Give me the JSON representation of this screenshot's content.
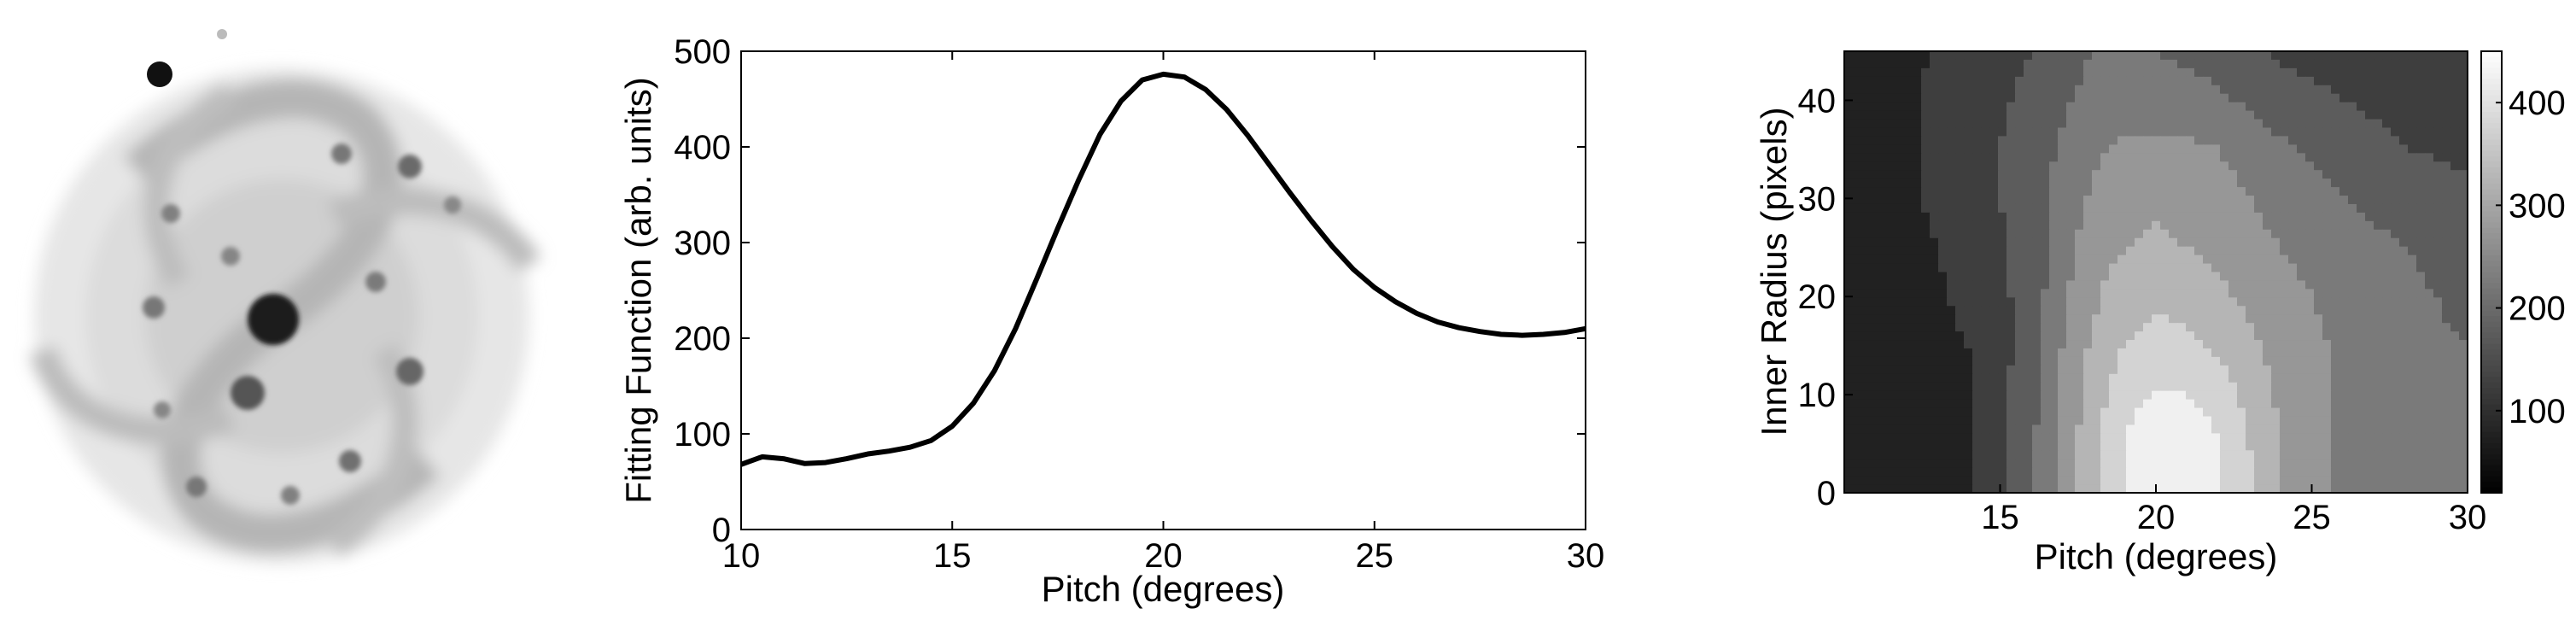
{
  "galaxy_image": {
    "description_icon": "spiral-galaxy-image"
  },
  "chart_data": [
    {
      "type": "line",
      "xlabel": "Pitch (degrees)",
      "ylabel": "Fitting Function (arb. units)",
      "xlim": [
        10,
        30
      ],
      "ylim": [
        0,
        500
      ],
      "xticks": [
        10,
        15,
        20,
        25,
        30
      ],
      "yticks": [
        0,
        100,
        200,
        300,
        400,
        500
      ],
      "grid": false,
      "series": [
        {
          "color": "#000000",
          "x": [
            10,
            10.5,
            11,
            11.5,
            12,
            12.5,
            13,
            13.5,
            14,
            14.5,
            15,
            15.5,
            16,
            16.5,
            17,
            17.5,
            18,
            18.5,
            19,
            19.5,
            20,
            20.5,
            21,
            21.5,
            22,
            22.5,
            23,
            23.5,
            24,
            24.5,
            25,
            25.5,
            26,
            26.5,
            27,
            27.5,
            28,
            28.5,
            29,
            29.5,
            30
          ],
          "y": [
            68,
            76,
            74,
            69,
            70,
            74,
            79,
            82,
            86,
            93,
            108,
            132,
            166,
            210,
            262,
            315,
            366,
            413,
            448,
            470,
            476,
            473,
            460,
            439,
            412,
            382,
            352,
            323,
            296,
            272,
            253,
            238,
            226,
            217,
            211,
            207,
            204,
            203,
            204,
            206,
            210
          ]
        }
      ]
    },
    {
      "type": "heatmap",
      "style": "filled-contour",
      "colormap": "gray",
      "xlabel": "Pitch (degrees)",
      "ylabel": "Inner Radius (pixels)",
      "xlim": [
        10,
        30
      ],
      "ylim": [
        0,
        45
      ],
      "xticks": [
        15,
        20,
        25,
        30
      ],
      "yticks": [
        0,
        10,
        20,
        30,
        40
      ],
      "x": [
        10,
        12,
        14,
        16,
        17,
        18,
        19,
        20,
        21,
        22,
        23,
        24,
        26,
        28,
        30
      ],
      "y": [
        0,
        5,
        10,
        15,
        20,
        25,
        30,
        35,
        40,
        45
      ],
      "z": [
        [
          80,
          70,
          100,
          190,
          270,
          330,
          400,
          440,
          440,
          400,
          360,
          300,
          240,
          210,
          200
        ],
        [
          80,
          80,
          100,
          190,
          270,
          330,
          400,
          450,
          440,
          400,
          350,
          300,
          240,
          210,
          200
        ],
        [
          60,
          70,
          100,
          180,
          260,
          330,
          380,
          400,
          400,
          380,
          330,
          290,
          240,
          210,
          200
        ],
        [
          50,
          80,
          100,
          170,
          250,
          310,
          350,
          370,
          360,
          340,
          310,
          280,
          240,
          210,
          200
        ],
        [
          50,
          80,
          110,
          170,
          240,
          290,
          330,
          340,
          330,
          310,
          290,
          270,
          230,
          210,
          190
        ],
        [
          60,
          80,
          120,
          170,
          230,
          280,
          300,
          310,
          300,
          290,
          270,
          250,
          220,
          200,
          180
        ],
        [
          70,
          90,
          130,
          170,
          220,
          260,
          280,
          290,
          280,
          270,
          250,
          230,
          200,
          180,
          160
        ],
        [
          70,
          90,
          130,
          170,
          210,
          240,
          260,
          260,
          260,
          250,
          230,
          210,
          180,
          150,
          140
        ],
        [
          70,
          90,
          130,
          160,
          190,
          220,
          230,
          230,
          220,
          210,
          190,
          170,
          150,
          130,
          120
        ],
        [
          70,
          90,
          120,
          150,
          180,
          200,
          200,
          200,
          190,
          180,
          160,
          140,
          130,
          120,
          110
        ]
      ],
      "levels": [
        50,
        100,
        150,
        200,
        250,
        300,
        350,
        400,
        450
      ],
      "colorbar": {
        "ticks": [
          100,
          200,
          300,
          400
        ],
        "range": [
          20,
          450
        ]
      }
    }
  ]
}
